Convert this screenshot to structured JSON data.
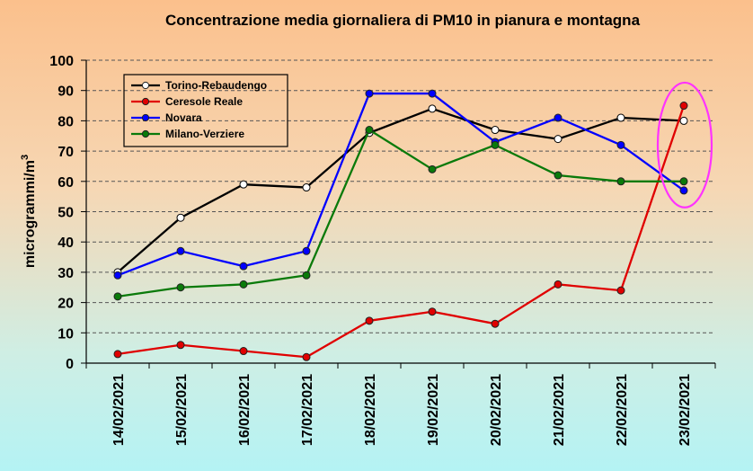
{
  "chart_data": {
    "type": "line",
    "title": "Concentrazione media giornaliera di PM10 in pianura e montagna",
    "ylabel": "microgrammi/m",
    "ylabel_sup": "3",
    "xlabel": "",
    "ylim": [
      0,
      100
    ],
    "ytick_step": 10,
    "grid": true,
    "legend_position": "top-left",
    "categories": [
      "14/02/2021",
      "15/02/2021",
      "16/02/2021",
      "17/02/2021",
      "18/02/2021",
      "19/02/2021",
      "20/02/2021",
      "21/02/2021",
      "22/02/2021",
      "23/02/2021"
    ],
    "series": [
      {
        "name": "Torino-Rebaudengo",
        "color": "#000000",
        "marker_fill": "#ffffff",
        "values": [
          30,
          48,
          59,
          58,
          76,
          84,
          77,
          74,
          81,
          80
        ]
      },
      {
        "name": "Ceresole Reale",
        "color": "#e00000",
        "marker_fill": "#e00000",
        "values": [
          3,
          6,
          4,
          2,
          14,
          17,
          13,
          26,
          24,
          85
        ]
      },
      {
        "name": "Novara",
        "color": "#0000ff",
        "marker_fill": "#0000ff",
        "values": [
          29,
          37,
          32,
          37,
          89,
          89,
          73,
          81,
          72,
          57
        ]
      },
      {
        "name": "Milano-Verziere",
        "color": "#0a7a0a",
        "marker_fill": "#0a7a0a",
        "values": [
          22,
          25,
          26,
          29,
          77,
          64,
          72,
          62,
          60,
          60
        ]
      }
    ],
    "highlight": {
      "category": "23/02/2021",
      "color": "#ff33ff"
    }
  }
}
